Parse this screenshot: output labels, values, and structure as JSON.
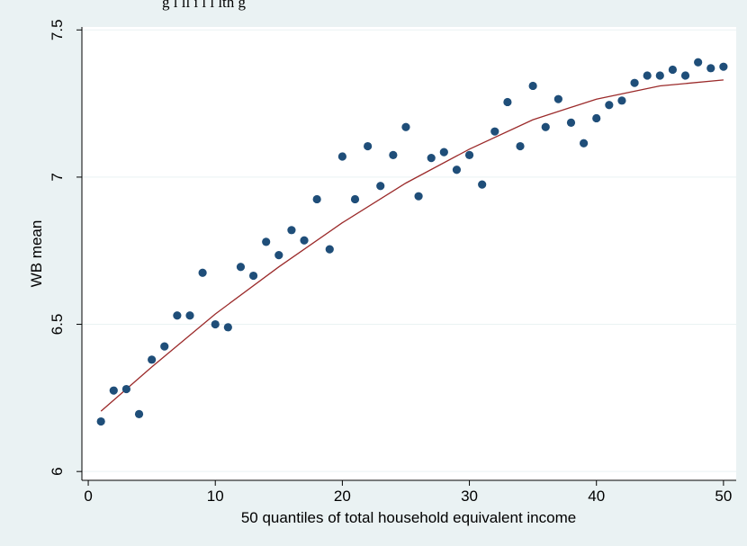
{
  "chart_data": {
    "type": "scatter",
    "title": "",
    "xlabel": "50 quantiles of total household equivalent income",
    "ylabel": "WB mean",
    "xlim": [
      -0.5,
      51
    ],
    "ylim": [
      5.97,
      7.51
    ],
    "xticks": [
      0,
      10,
      20,
      30,
      40,
      50
    ],
    "yticks": [
      6,
      6.5,
      7,
      7.5
    ],
    "ytick_labels": [
      "6",
      "6.5",
      "7",
      "7.5"
    ],
    "grid": "horizontal",
    "legend": "none",
    "series": [
      {
        "type": "scatter",
        "color": "#1f4e79",
        "x": [
          1,
          2,
          3,
          4,
          5,
          6,
          7,
          8,
          9,
          10,
          11,
          12,
          13,
          14,
          15,
          16,
          17,
          18,
          19,
          20,
          21,
          22,
          23,
          24,
          25,
          26,
          27,
          28,
          29,
          30,
          31,
          32,
          33,
          34,
          35,
          36,
          37,
          38,
          39,
          40,
          41,
          42,
          43,
          44,
          45,
          46,
          47,
          48,
          49,
          50
        ],
        "y": [
          6.17,
          6.275,
          6.28,
          6.195,
          6.38,
          6.425,
          6.53,
          6.53,
          6.675,
          6.5,
          6.49,
          6.695,
          6.665,
          6.78,
          6.735,
          6.82,
          6.785,
          6.925,
          6.755,
          7.07,
          6.925,
          7.105,
          6.97,
          7.075,
          7.17,
          6.935,
          7.065,
          7.085,
          7.025,
          7.075,
          6.975,
          7.155,
          7.255,
          7.105,
          7.31,
          7.17,
          7.265,
          7.185,
          7.115,
          7.2,
          7.245,
          7.26,
          7.32,
          7.345,
          7.345,
          7.365,
          7.345,
          7.39,
          7.37,
          7.375
        ]
      },
      {
        "type": "line",
        "color": "#9b2a2a",
        "x": [
          1,
          5,
          10,
          15,
          20,
          25,
          30,
          35,
          40,
          45,
          50
        ],
        "y": [
          6.205,
          6.355,
          6.535,
          6.695,
          6.845,
          6.98,
          7.095,
          7.195,
          7.265,
          7.31,
          7.33
        ]
      }
    ]
  },
  "header": {
    "partial_title": "g    l    ll      i    l    l    lth    g"
  }
}
